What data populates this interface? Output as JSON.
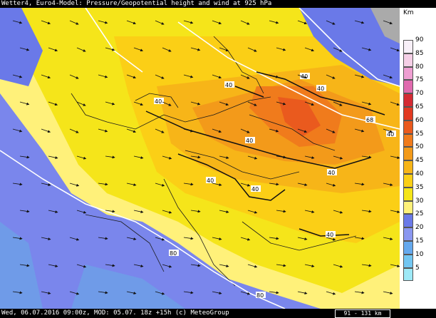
{
  "header": {
    "title": "Wetter4, Euro4-Model: Pressure/Geopotential height and wind at 925 hPa"
  },
  "footer": {
    "info": "Wed, 06.07.2016 09:00z, MOD: 05.07. 18z +15h (c) MeteoGroup",
    "scale": "91 - 131 km"
  },
  "legend": {
    "unit": "Km",
    "entries": [
      {
        "label": "90",
        "color": "#f8f0f8"
      },
      {
        "label": "85",
        "color": "#f5cfe6"
      },
      {
        "label": "80",
        "color": "#ef9fd2"
      },
      {
        "label": "75",
        "color": "#e06aae"
      },
      {
        "label": "70",
        "color": "#d42b33"
      },
      {
        "label": "65",
        "color": "#e23a22"
      },
      {
        "label": "60",
        "color": "#ea5a1e"
      },
      {
        "label": "55",
        "color": "#f07b1c"
      },
      {
        "label": "50",
        "color": "#f39a1a"
      },
      {
        "label": "45",
        "color": "#f7b518"
      },
      {
        "label": "40",
        "color": "#fbcf16"
      },
      {
        "label": "35",
        "color": "#f5e51a"
      },
      {
        "label": "30",
        "color": "#fff17a"
      },
      {
        "label": "25",
        "color": "#6a79e8"
      },
      {
        "label": "20",
        "color": "#8a97f0"
      },
      {
        "label": "15",
        "color": "#65a9ee"
      },
      {
        "label": "10",
        "color": "#72c6f2"
      },
      {
        "label": "5",
        "color": "#9ee9f7"
      }
    ]
  },
  "map": {
    "contour_labels": [
      "40",
      "40",
      "40",
      "40",
      "40",
      "40",
      "40",
      "40",
      "40",
      "40"
    ],
    "height_labels": [
      "68",
      "80",
      "80"
    ]
  }
}
